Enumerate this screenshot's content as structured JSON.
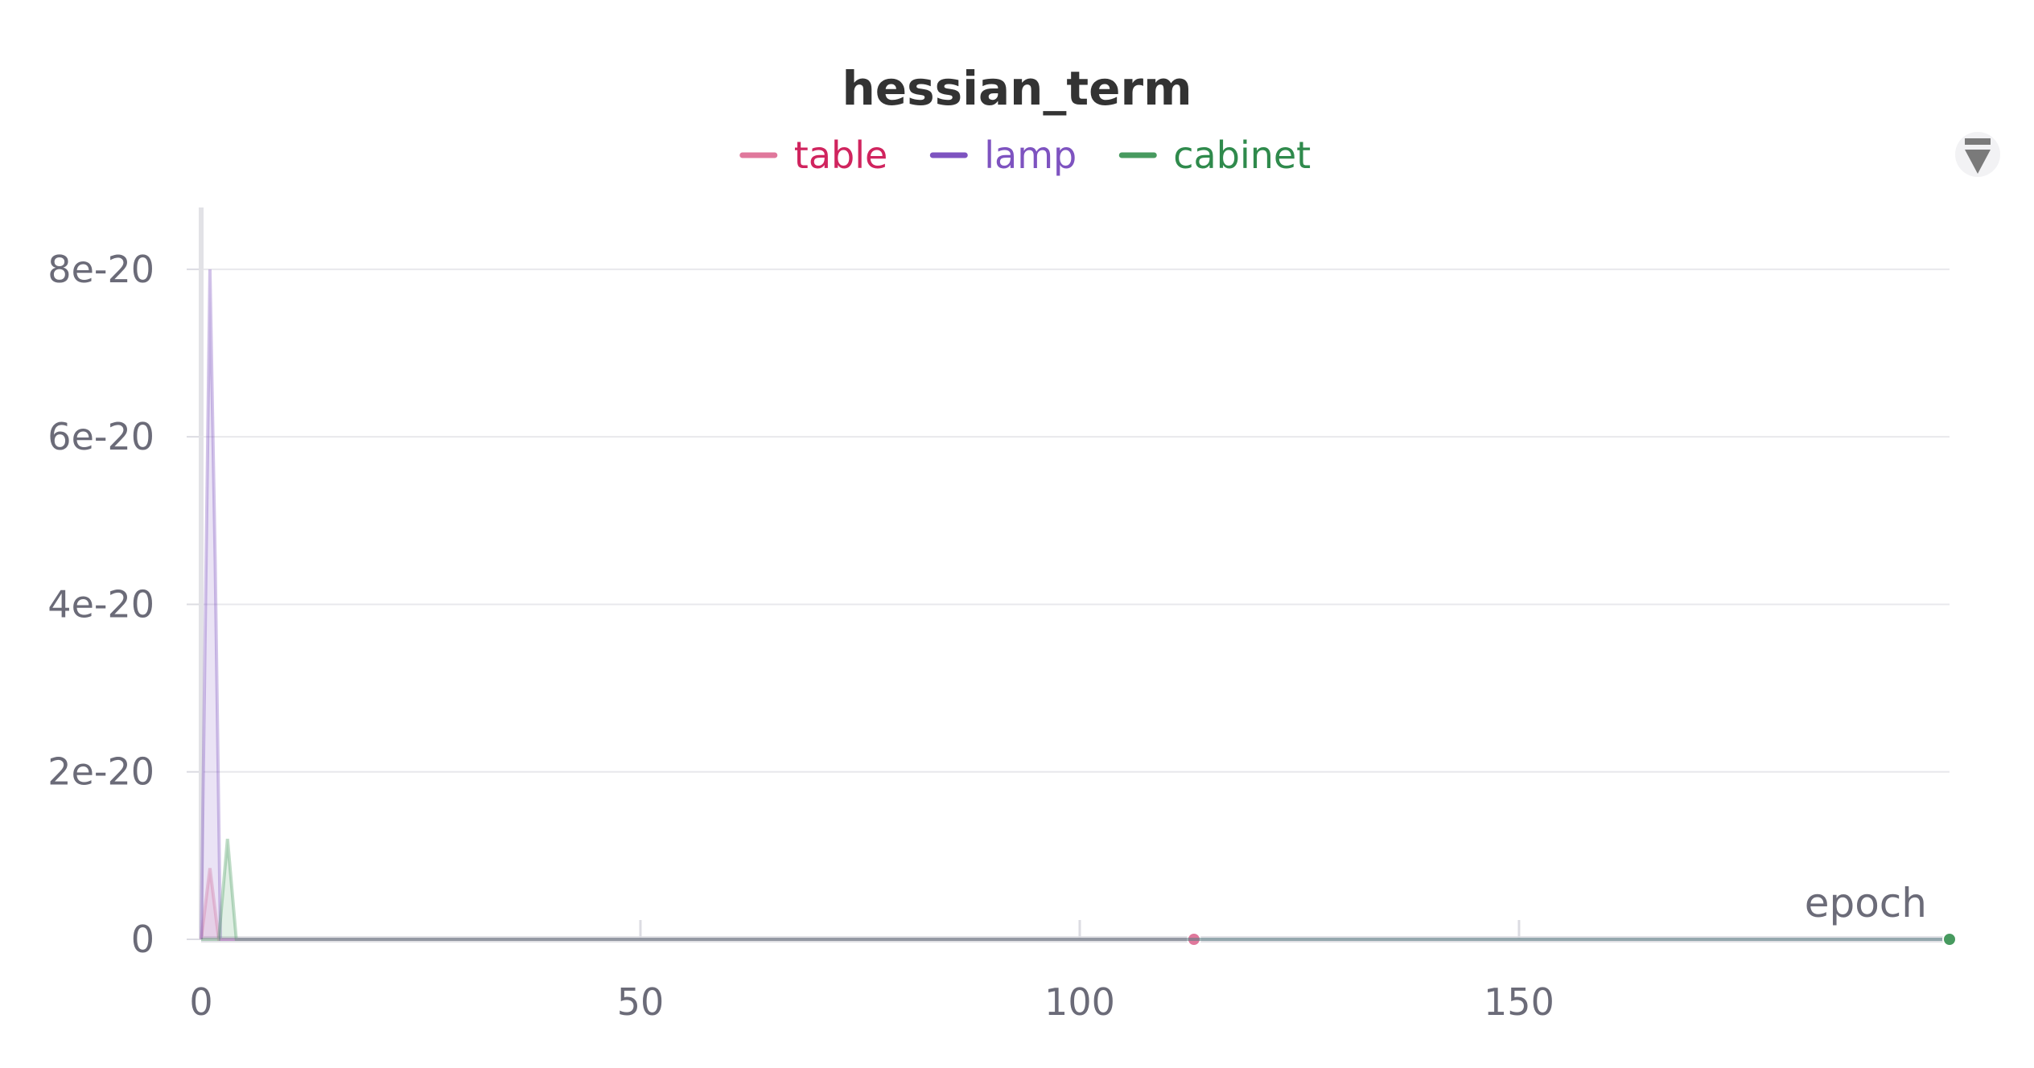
{
  "chart_data": {
    "type": "line",
    "title": "hessian_term",
    "xlabel": "epoch",
    "ylabel": "",
    "xlim": [
      0,
      199
    ],
    "ylim": [
      0,
      8.7e-20
    ],
    "x_ticks": [
      0,
      50,
      100,
      150
    ],
    "x_tick_labels": [
      "0",
      "50",
      "100",
      "150"
    ],
    "y_ticks": [
      0,
      2e-20,
      4e-20,
      6e-20,
      8e-20
    ],
    "y_tick_labels": [
      "0",
      "2e-20",
      "4e-20",
      "6e-20",
      "8e-20"
    ],
    "grid": true,
    "legend_position": "top-center",
    "series": [
      {
        "name": "table",
        "color": "#e0789c",
        "text_color": "#d0245e",
        "x": [
          0,
          1,
          2,
          3,
          113
        ],
        "y": [
          0,
          8.5e-21,
          0,
          0,
          0
        ],
        "end_marker_x": 113,
        "end_marker_y": 0
      },
      {
        "name": "lamp",
        "color": "#7e53c0",
        "text_color": "#7e53c0",
        "x": [
          0,
          0.5,
          1,
          1.6,
          2.2,
          199
        ],
        "y": [
          0,
          4e-20,
          8e-20,
          4.5e-20,
          0,
          0
        ],
        "end_marker_x": null,
        "end_marker_y": null
      },
      {
        "name": "cabinet",
        "color": "#479a5f",
        "text_color": "#2f8a4c",
        "x": [
          0,
          2,
          3,
          4,
          199
        ],
        "y": [
          0,
          0,
          1.2e-20,
          0,
          0
        ],
        "end_marker_x": 199,
        "end_marker_y": 0
      }
    ]
  },
  "icons": {
    "menu": "expand-collapse-icon"
  }
}
